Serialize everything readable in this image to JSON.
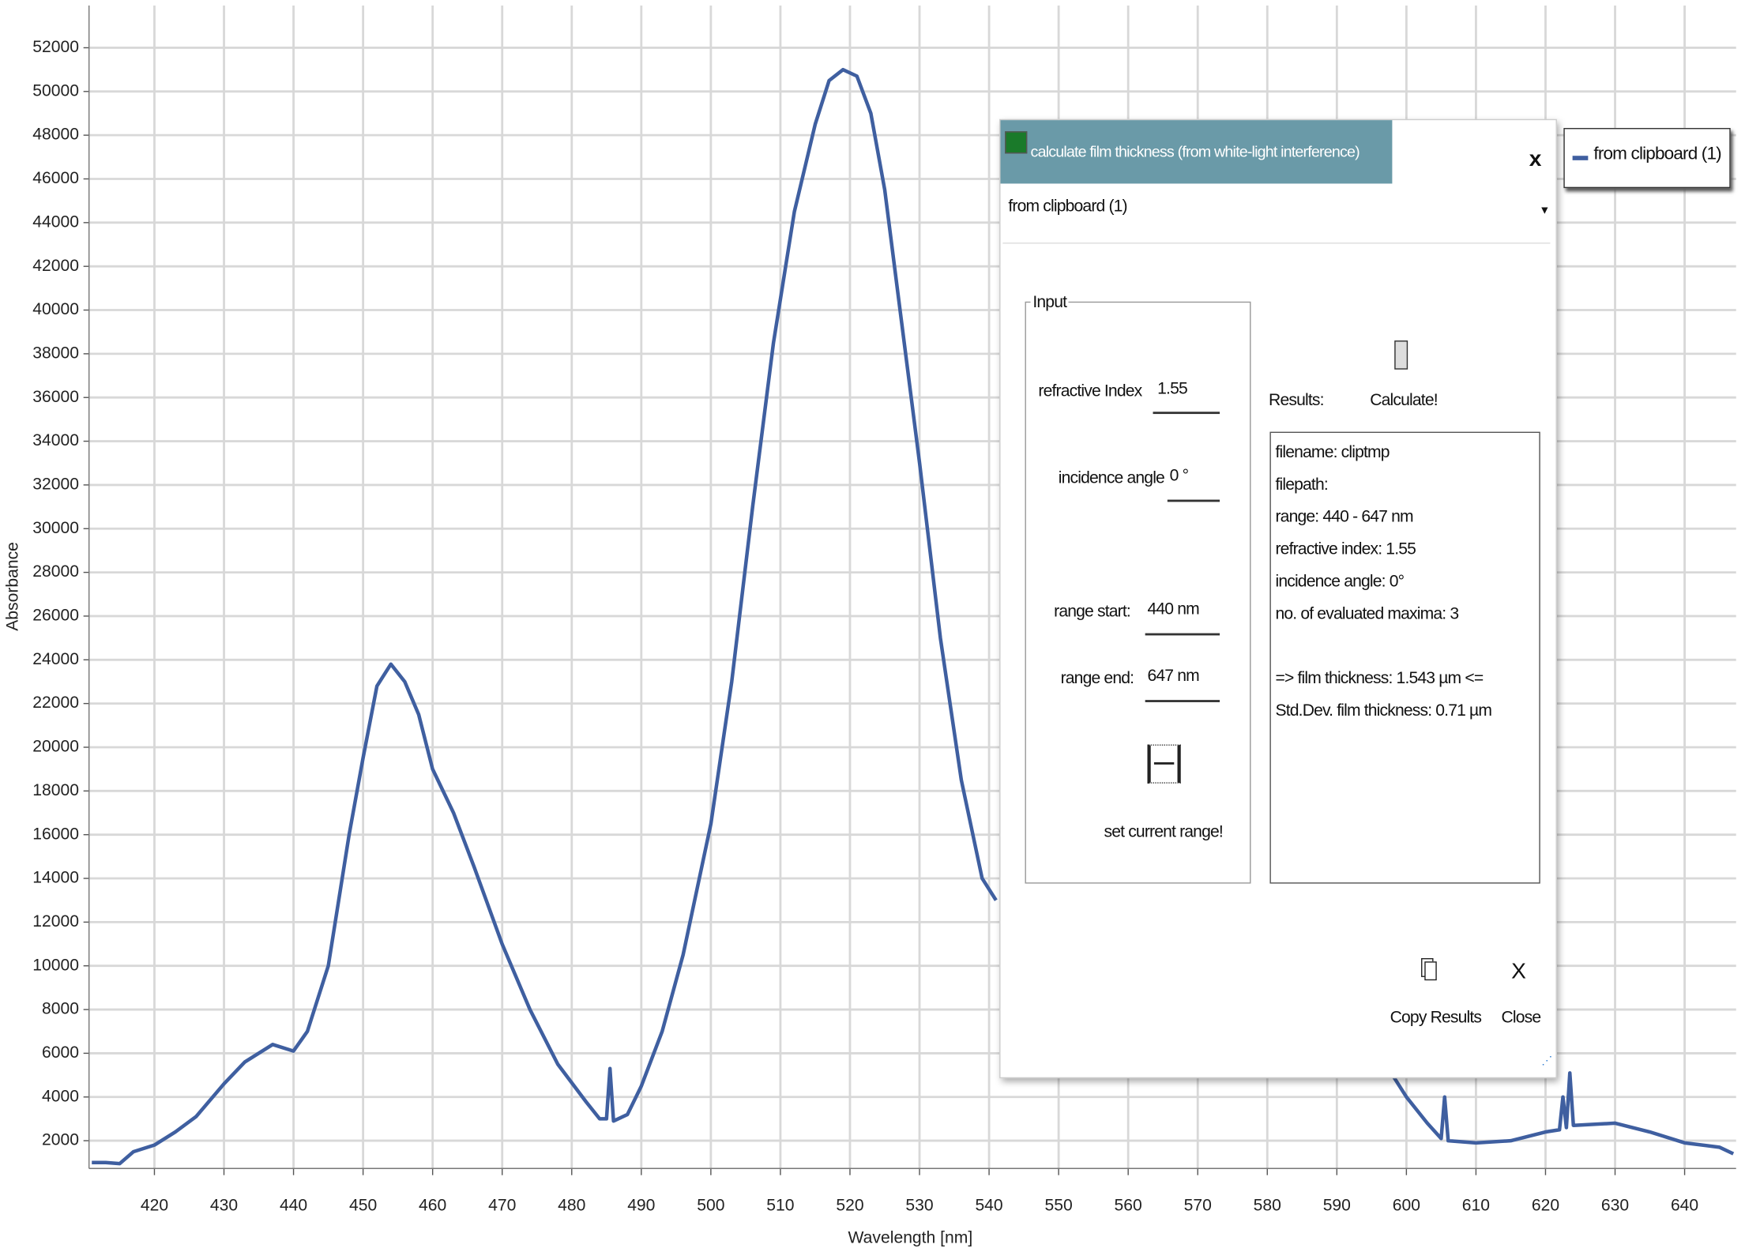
{
  "chart_data": {
    "type": "line",
    "x_label": "Wavelength [nm]",
    "y_label": "Absorbance",
    "x": [
      411,
      413,
      415,
      417,
      420,
      423,
      426,
      430,
      433,
      437,
      440,
      442,
      445,
      448,
      450,
      452,
      454,
      456,
      458,
      460,
      463,
      466,
      470,
      474,
      478,
      482,
      484,
      485,
      485.5,
      486,
      488,
      490,
      493,
      496,
      500,
      503,
      506,
      509,
      512,
      515,
      517,
      519,
      521,
      523,
      525,
      527,
      530,
      533,
      536,
      539,
      541,
      543,
      598,
      600,
      603,
      605,
      605.5,
      606,
      610,
      615,
      620,
      622,
      622.5,
      623,
      623.5,
      624,
      630,
      635,
      640,
      645,
      647
    ],
    "series": [
      {
        "name": "from clipboard (1)",
        "color": "#3f5fa0",
        "values": [
          1000,
          1000,
          950,
          1500,
          1800,
          2400,
          3100,
          4600,
          5600,
          6400,
          6100,
          7000,
          10000,
          16000,
          19500,
          22800,
          23800,
          23000,
          21500,
          19000,
          17000,
          14500,
          11000,
          8000,
          5500,
          3800,
          3000,
          3000,
          5300,
          2900,
          3200,
          4500,
          7000,
          10500,
          16500,
          23000,
          31000,
          38500,
          44500,
          48500,
          50500,
          51000,
          50700,
          49000,
          45500,
          40500,
          33000,
          25000,
          18500,
          14000,
          13000,
          null,
          5000,
          4000,
          2800,
          2100,
          4000,
          2000,
          1900,
          2000,
          2400,
          2500,
          4000,
          2600,
          5100,
          2700,
          2800,
          2400,
          1900,
          1700,
          1400
        ]
      }
    ],
    "xlim": [
      410.6,
      647.4
    ],
    "ylim": [
      730,
      53930
    ],
    "xticks": [
      420,
      430,
      440,
      450,
      460,
      470,
      480,
      490,
      500,
      510,
      520,
      530,
      540,
      550,
      560,
      570,
      580,
      590,
      600,
      610,
      620,
      630,
      640
    ],
    "yticks": [
      2000,
      4000,
      6000,
      8000,
      10000,
      12000,
      14000,
      16000,
      18000,
      20000,
      22000,
      24000,
      26000,
      28000,
      30000,
      32000,
      34000,
      36000,
      38000,
      40000,
      42000,
      44000,
      46000,
      48000,
      50000,
      52000
    ],
    "grid": true,
    "legend": "upper right"
  },
  "dialog": {
    "title": "calculate film thickness (from white-light interference)",
    "close_x": "x",
    "dropdown": "from clipboard (1)",
    "input_group": "Input",
    "refractive_index_label": "refractive Index",
    "refractive_index": "1.55",
    "incidence_angle_label": "incidence angle",
    "incidence_angle": "0 °",
    "range_start_label": "range start:",
    "range_start": "440 nm",
    "range_end_label": "range end:",
    "range_end": "647 nm",
    "set_range_button": "set current range!",
    "results_label": "Results:",
    "calculate_button": "Calculate!",
    "results": [
      "filename: cliptmp",
      "filepath:",
      "range:   440 - 647 nm",
      "refractive index: 1.55",
      "incidence angle: 0°",
      "no. of evaluated maxima: 3",
      "=>  film thickness:  1.543 µm  <=",
      "Std.Dev. film thickness: 0.71 µm"
    ],
    "copy_button": "Copy Results",
    "close_button": "Close"
  }
}
